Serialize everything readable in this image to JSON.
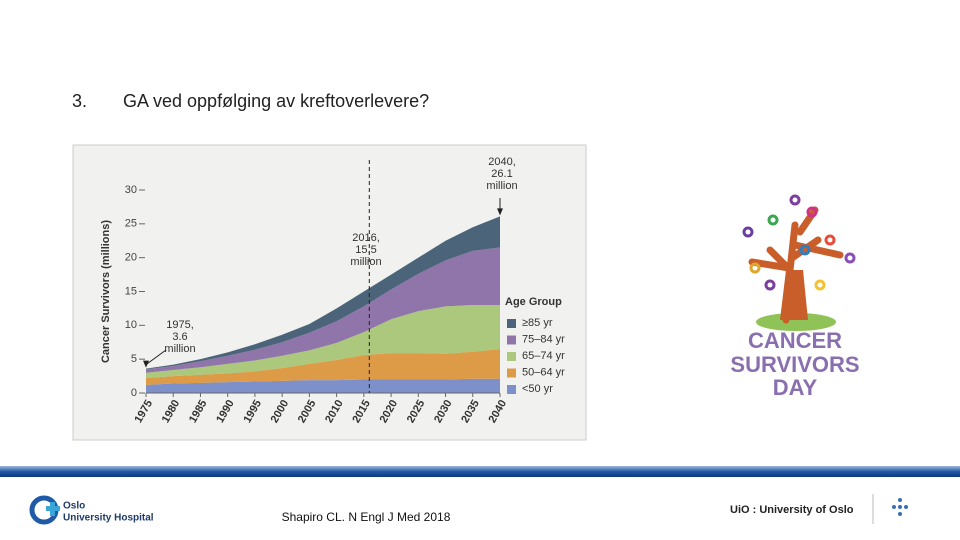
{
  "slide": {
    "number": "3.",
    "title": "GA ved oppfølging av kreftoverlevere?",
    "citation": "Shapiro CL. N Engl J Med 2018",
    "logo_left": [
      "Oslo",
      "University Hospital"
    ],
    "logo_right": "UiO : University of Oslo",
    "side_image_text": [
      "CANCER",
      "SURVIVORS",
      "DAY"
    ]
  },
  "chart_data": {
    "type": "stacked-area",
    "y_label": "Cancer Survivors (millions)",
    "legend_title": "Age Group",
    "x": [
      1975,
      1980,
      1985,
      1990,
      1995,
      2000,
      2005,
      2010,
      2015,
      2020,
      2025,
      2030,
      2035,
      2040
    ],
    "xlim": [
      1975,
      2040
    ],
    "xticks": [
      1975,
      1980,
      1985,
      1990,
      1995,
      2000,
      2005,
      2010,
      2015,
      2020,
      2025,
      2030,
      2035,
      2040
    ],
    "ylim": [
      0,
      30
    ],
    "yticks": [
      0,
      5,
      10,
      15,
      20,
      25,
      30
    ],
    "series": [
      {
        "name": "≥85 yr",
        "color": "#4b6479",
        "values": [
          0.1,
          0.2,
          0.3,
          0.5,
          0.8,
          1.1,
          1.3,
          1.9,
          2.2,
          2.2,
          2.4,
          2.9,
          3.5,
          4.6
        ]
      },
      {
        "name": "75–84 yr",
        "color": "#9075ab",
        "values": [
          0.5,
          0.6,
          0.9,
          1.2,
          1.6,
          2.0,
          2.6,
          3.2,
          3.8,
          4.4,
          5.5,
          6.8,
          8.0,
          8.5
        ]
      },
      {
        "name": "65–74 yr",
        "color": "#abc87c",
        "values": [
          0.8,
          0.9,
          1.1,
          1.4,
          1.6,
          1.8,
          2.0,
          2.5,
          3.4,
          5.0,
          6.2,
          7.0,
          6.9,
          6.5
        ]
      },
      {
        "name": "50–64 yr",
        "color": "#de9b47",
        "values": [
          1.0,
          1.1,
          1.2,
          1.3,
          1.5,
          1.9,
          2.4,
          3.0,
          3.6,
          3.9,
          3.9,
          3.8,
          4.0,
          4.4
        ]
      },
      {
        "name": "<50 yr",
        "color": "#7d90c9",
        "values": [
          1.2,
          1.4,
          1.5,
          1.6,
          1.7,
          1.8,
          1.9,
          1.9,
          2.0,
          2.0,
          2.0,
          2.0,
          2.1,
          2.1
        ]
      }
    ],
    "annotations": [
      {
        "lines": [
          "1975,",
          "3.6",
          "million"
        ],
        "x": 1975,
        "y": 3.6
      },
      {
        "lines": [
          "2016,",
          "15.5",
          "million"
        ],
        "x": 2016,
        "y": 15.5
      },
      {
        "lines": [
          "2040,",
          "26.1",
          "million"
        ],
        "x": 2040,
        "y": 26.1
      }
    ]
  }
}
